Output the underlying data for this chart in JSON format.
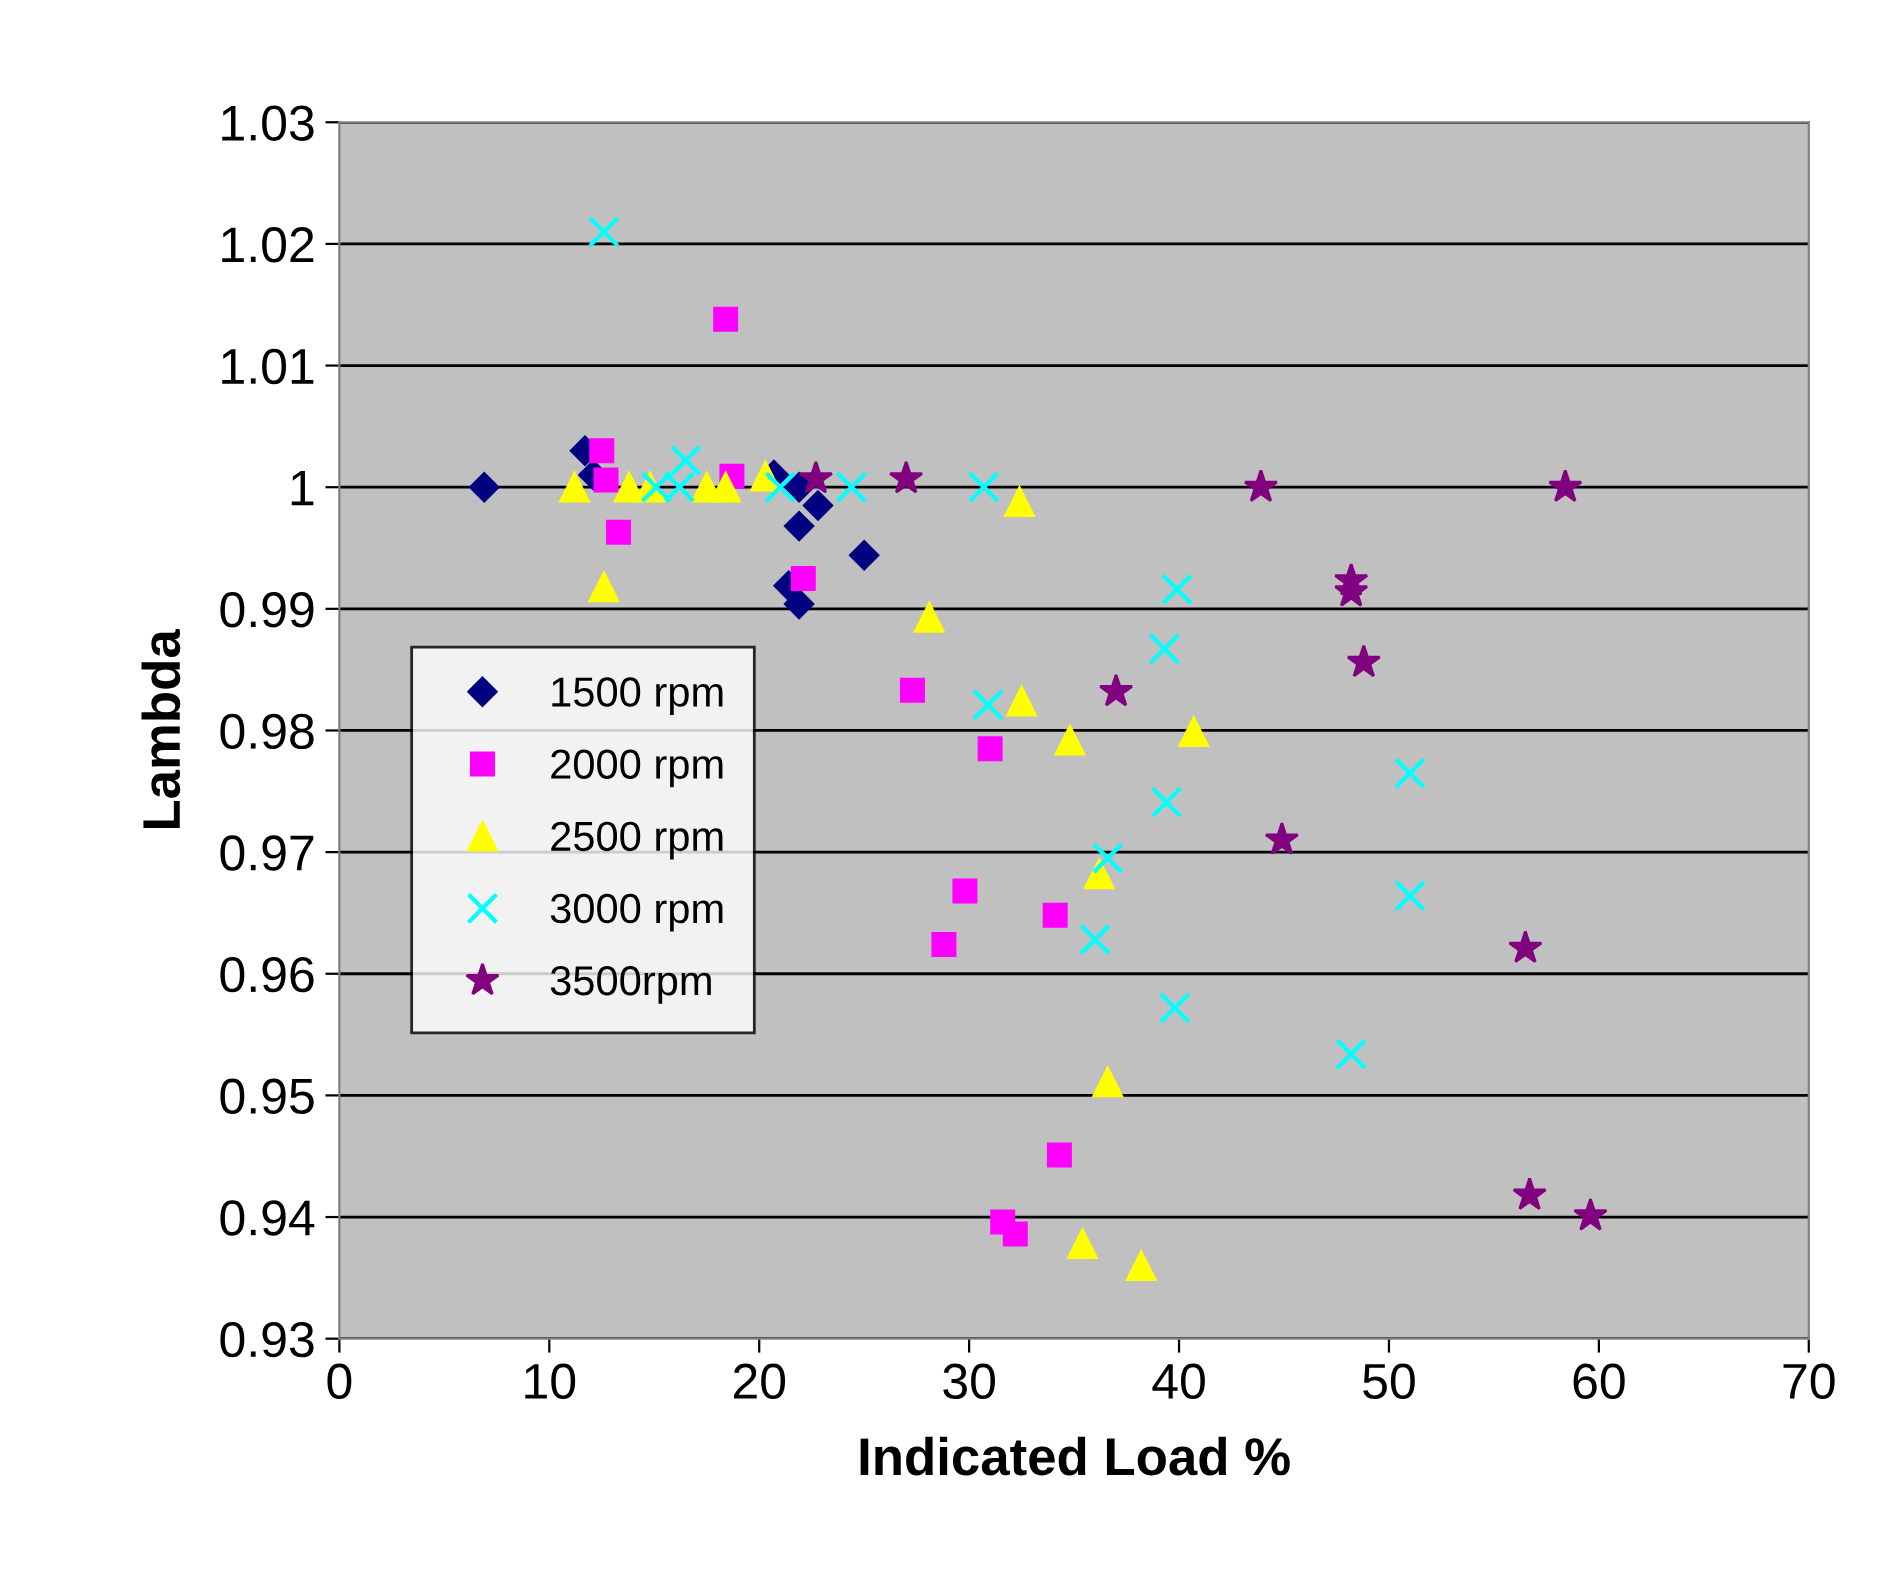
{
  "chart_data": {
    "type": "scatter",
    "xlabel": "Indicated Load %",
    "ylabel": "Lambda",
    "xlim": [
      0,
      70
    ],
    "xticks": [
      0,
      10,
      20,
      30,
      40,
      50,
      60,
      70
    ],
    "ylim": [
      0.93,
      1.03
    ],
    "yticks": [
      {
        "value": 0.93,
        "label": "0.93"
      },
      {
        "value": 0.94,
        "label": "0.94"
      },
      {
        "value": 0.95,
        "label": "0.95"
      },
      {
        "value": 0.96,
        "label": "0.96"
      },
      {
        "value": 0.97,
        "label": "0.97"
      },
      {
        "value": 0.98,
        "label": "0.98"
      },
      {
        "value": 0.99,
        "label": "0.99"
      },
      {
        "value": 1.0,
        "label": "1"
      },
      {
        "value": 1.01,
        "label": "1.01"
      },
      {
        "value": 1.02,
        "label": "1.02"
      },
      {
        "value": 1.03,
        "label": "1.03"
      }
    ],
    "grid": "y",
    "legend": "left",
    "series": [
      {
        "name": "1500 rpm",
        "color": "#000080",
        "marker": "diamond",
        "x": [
          6.9,
          11.7,
          12.1,
          20.7,
          21.9,
          22.8,
          21.9,
          25.0,
          21.4,
          21.9
        ],
        "values": [
          1.0,
          1.003,
          1.001,
          1.001,
          1.0,
          0.9985,
          0.9968,
          0.9944,
          0.9919,
          0.9904
        ]
      },
      {
        "name": "2000 rpm",
        "color": "#ff00ff",
        "marker": "square",
        "x": [
          18.4,
          12.5,
          12.7,
          18.7,
          15.5,
          13.3,
          22.1,
          27.3,
          31.0,
          29.8,
          34.1,
          28.8,
          34.3,
          31.6,
          32.2
        ],
        "values": [
          1.0138,
          1.003,
          1.0006,
          1.0009,
          null,
          0.9963,
          0.9925,
          0.9833,
          0.9785,
          0.9668,
          0.9648,
          0.9624,
          0.9451,
          0.9396,
          0.9386
        ]
      },
      {
        "name": "2500 rpm",
        "color": "#ffff00",
        "marker": "triangle",
        "x": [
          11.2,
          12.6,
          13.8,
          14.8,
          17.5,
          18.4,
          20.3,
          32.4,
          28.1,
          32.5,
          34.8,
          40.7,
          36.2,
          36.6,
          35.4,
          38.2
        ],
        "values": [
          1.0,
          0.9918,
          1.0,
          1.0,
          1.0,
          1.0,
          1.0009,
          0.9988,
          0.9893,
          0.9824,
          0.9792,
          0.9799,
          0.9682,
          0.9511,
          0.9378,
          0.936
        ]
      },
      {
        "name": "3000 rpm",
        "color": "#00ffff",
        "marker": "cross",
        "x": [
          12.6,
          16.5,
          15.1,
          16.2,
          21.0,
          24.4,
          30.7,
          39.9,
          39.3,
          30.9,
          39.4,
          36.6,
          36.0,
          39.8,
          48.2,
          51.0,
          51.0
        ],
        "values": [
          1.021,
          1.0022,
          1.0,
          1.0,
          1.0,
          1.0,
          1.0,
          0.9916,
          0.9867,
          0.9821,
          0.9741,
          0.9695,
          0.9628,
          0.9572,
          0.9534,
          0.9765,
          0.9664
        ]
      },
      {
        "name": "3500rpm",
        "color": "#800080",
        "marker": "star",
        "x": [
          22.7,
          27.0,
          43.9,
          48.2,
          48.2,
          48.8,
          37.0,
          44.9,
          58.4,
          56.5,
          56.7,
          59.6
        ],
        "values": [
          1.0007,
          1.0007,
          1.0,
          0.9923,
          0.9914,
          0.9856,
          0.9832,
          0.971,
          1.0,
          0.9621,
          0.9418,
          0.9401
        ]
      }
    ]
  }
}
